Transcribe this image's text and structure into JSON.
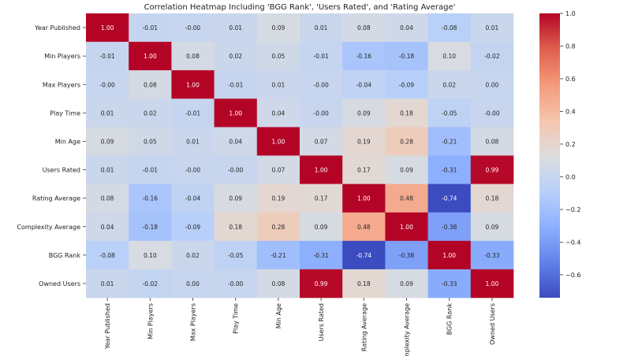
{
  "chart_data": {
    "type": "heatmap",
    "title": "Correlation Heatmap Including 'BGG Rank', 'Users Rated', and 'Rating Average'",
    "xlabel": "",
    "ylabel": "",
    "labels": [
      "Year Published",
      "Min Players",
      "Max Players",
      "Play Time",
      "Min Age",
      "Users Rated",
      "Rating Average",
      "Complexity Average",
      "BGG Rank",
      "Owned Users"
    ],
    "values": [
      [
        "1.00",
        "-0.01",
        "-0.00",
        "0.01",
        "0.09",
        "0.01",
        "0.08",
        "0.04",
        "-0.08",
        "0.01"
      ],
      [
        "-0.01",
        "1.00",
        "0.08",
        "0.02",
        "0.05",
        "-0.01",
        "-0.16",
        "-0.18",
        "0.10",
        "-0.02"
      ],
      [
        "-0.00",
        "0.08",
        "1.00",
        "-0.01",
        "0.01",
        "-0.00",
        "-0.04",
        "-0.09",
        "0.02",
        "0.00"
      ],
      [
        "0.01",
        "0.02",
        "-0.01",
        "1.00",
        "0.04",
        "-0.00",
        "0.09",
        "0.18",
        "-0.05",
        "-0.00"
      ],
      [
        "0.09",
        "0.05",
        "0.01",
        "0.04",
        "1.00",
        "0.07",
        "0.19",
        "0.28",
        "-0.21",
        "0.08"
      ],
      [
        "0.01",
        "-0.01",
        "-0.00",
        "-0.00",
        "0.07",
        "1.00",
        "0.17",
        "0.09",
        "-0.31",
        "0.99"
      ],
      [
        "0.08",
        "-0.16",
        "-0.04",
        "0.09",
        "0.19",
        "0.17",
        "1.00",
        "0.48",
        "-0.74",
        "0.18"
      ],
      [
        "0.04",
        "-0.18",
        "-0.09",
        "0.18",
        "0.28",
        "0.09",
        "0.48",
        "1.00",
        "-0.38",
        "0.09"
      ],
      [
        "-0.08",
        "0.10",
        "0.02",
        "-0.05",
        "-0.21",
        "-0.31",
        "-0.74",
        "-0.38",
        "1.00",
        "-0.33"
      ],
      [
        "0.01",
        "-0.02",
        "0.00",
        "-0.00",
        "0.08",
        "0.99",
        "0.18",
        "0.09",
        "-0.33",
        "1.00"
      ]
    ],
    "colormap": "coolwarm",
    "vmin": -0.74,
    "vmax": 1.0,
    "colorbar_ticks": [
      "1.0",
      "0.8",
      "0.6",
      "0.4",
      "0.2",
      "0.0",
      "−0.2",
      "−0.4",
      "−0.6"
    ],
    "annotated": true,
    "legend": "colorbar-right"
  }
}
